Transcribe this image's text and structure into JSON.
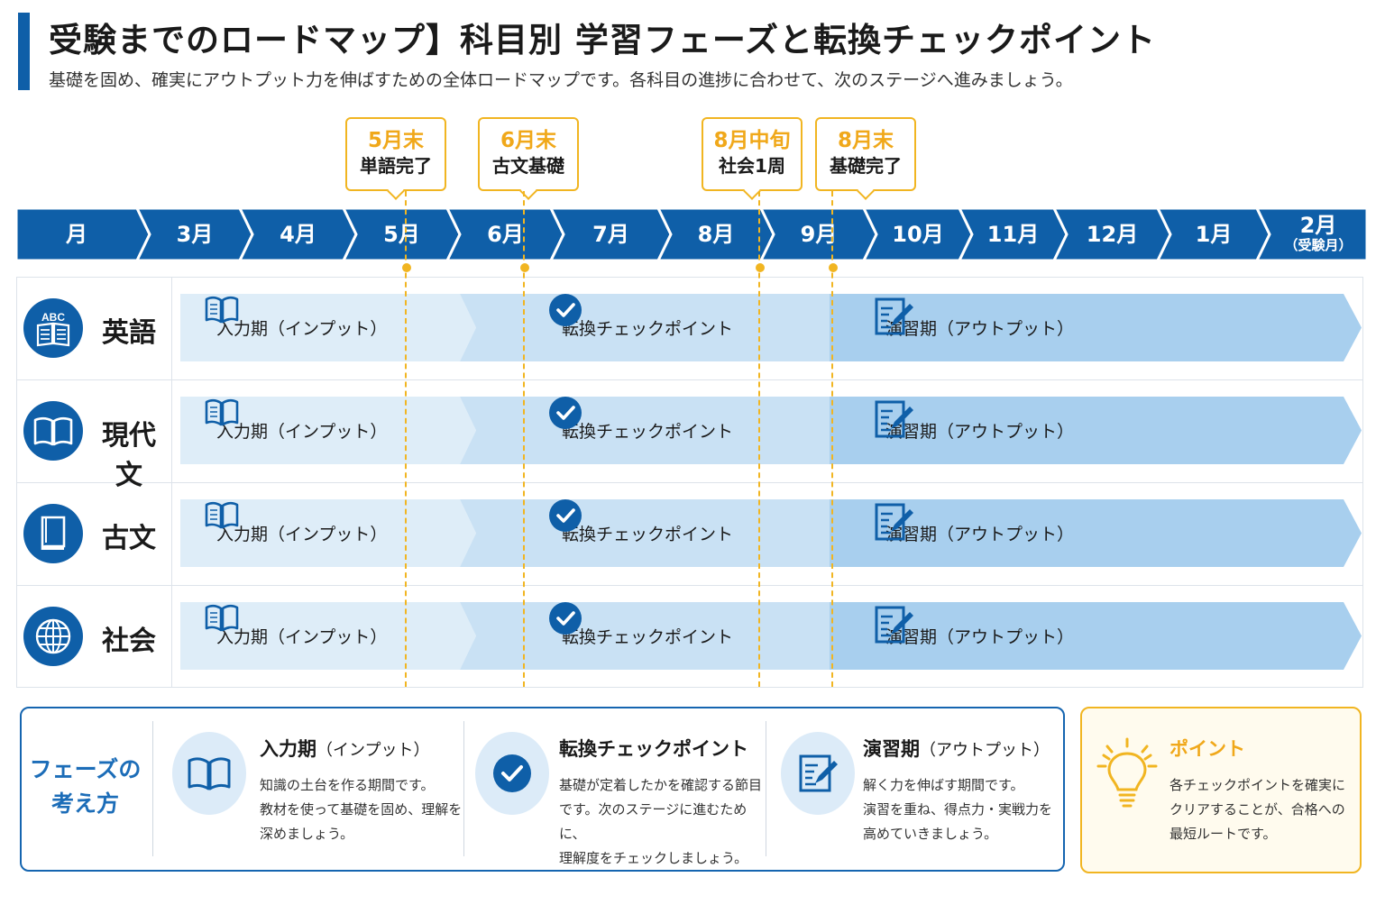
{
  "header": {
    "title": "受験までのロードマップ】科目別 学習フェーズと転換チェックポイント",
    "subtitle": "基礎を固め、確実にアウトプット力を伸ばすための全体ロードマップです。各科目の進捗に合わせて、次のステージへ進みましょう。"
  },
  "timeline": {
    "months": [
      {
        "label": "月",
        "sub": ""
      },
      {
        "label": "3月",
        "sub": ""
      },
      {
        "label": "4月",
        "sub": ""
      },
      {
        "label": "5月",
        "sub": ""
      },
      {
        "label": "6月",
        "sub": ""
      },
      {
        "label": "7月",
        "sub": ""
      },
      {
        "label": "8月",
        "sub": ""
      },
      {
        "label": "9月",
        "sub": ""
      },
      {
        "label": "10月",
        "sub": ""
      },
      {
        "label": "11月",
        "sub": ""
      },
      {
        "label": "12月",
        "sub": ""
      },
      {
        "label": "1月",
        "sub": ""
      },
      {
        "label": "2月",
        "sub": "（受験月）"
      }
    ]
  },
  "milestones": [
    {
      "date": "5月末",
      "event": "単語完了"
    },
    {
      "date": "6月末",
      "event": "古文基礎"
    },
    {
      "date": "8月中旬",
      "event": "社会1周"
    },
    {
      "date": "8月末",
      "event": "基礎完了"
    }
  ],
  "subjects": [
    {
      "name": "英語",
      "icon": "abc-book-icon"
    },
    {
      "name": "現代文",
      "icon": "open-book-icon"
    },
    {
      "name": "古文",
      "icon": "closed-book-icon"
    },
    {
      "name": "社会",
      "icon": "globe-icon"
    }
  ],
  "phases": {
    "input": "入力期（インプット）",
    "checkpoint": "転換チェックポイント",
    "output": "演習期（アウトプット）"
  },
  "legend": {
    "title": [
      "フェーズの",
      "考え方"
    ],
    "items": [
      {
        "name": "入力期",
        "sub": "（インプット）",
        "icon": "open-book-icon",
        "desc": [
          "知識の土台を作る期間です。",
          "教材を使って基礎を固め、理解を",
          "深めましょう。"
        ]
      },
      {
        "name": "転換チェックポイント",
        "sub": "",
        "icon": "check-circle-icon",
        "desc": [
          "基礎が定着したかを確認する節目",
          "です。次のステージに進むために、",
          "理解度をチェックしましょう。"
        ]
      },
      {
        "name": "演習期",
        "sub": "（アウトプット）",
        "icon": "edit-note-icon",
        "desc": [
          "解く力を伸ばす期間です。",
          "演習を重ね、得点力・実戦力を",
          "高めていきましょう。"
        ]
      }
    ]
  },
  "point": {
    "title": "ポイント",
    "icon": "lightbulb-icon",
    "desc": [
      "各チェックポイントを確実に",
      "クリアすることが、合格への",
      "最短ルートです。"
    ]
  },
  "colors": {
    "primary": "#0f5fa8",
    "accent": "#f1b521",
    "input_fill": "#deedf8",
    "checkpoint_fill": "#c9e1f4",
    "output_fill": "#a8cfee"
  }
}
